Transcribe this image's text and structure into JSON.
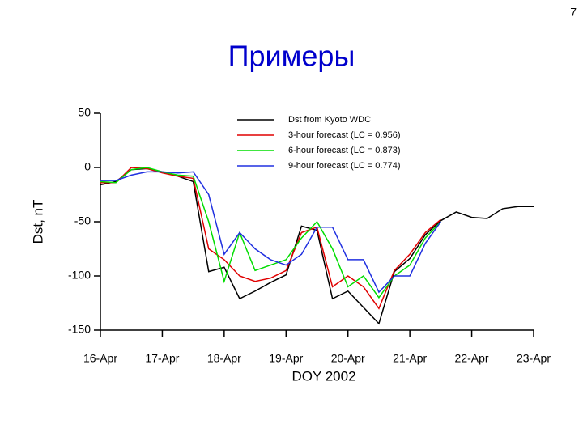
{
  "page_number": "7",
  "heading": "Примеры",
  "chart_data": {
    "type": "line",
    "x_label": "DOY 2002",
    "y_label": "Dst, nT",
    "x": [
      106,
      106.25,
      106.5,
      106.75,
      107,
      107.25,
      107.5,
      107.75,
      108,
      108.25,
      108.5,
      108.75,
      109,
      109.25,
      109.5,
      109.75,
      110,
      110.25,
      110.5,
      110.75,
      111,
      111.25,
      111.5,
      111.75,
      112,
      112.25,
      112.5,
      112.75,
      113
    ],
    "xlim": [
      106,
      113
    ],
    "xticks": [
      {
        "value": 106,
        "label": "16-Apr"
      },
      {
        "value": 107,
        "label": "17-Apr"
      },
      {
        "value": 108,
        "label": "18-Apr"
      },
      {
        "value": 109,
        "label": "19-Apr"
      },
      {
        "value": 110,
        "label": "20-Apr"
      },
      {
        "value": 111,
        "label": "21-Apr"
      },
      {
        "value": 112,
        "label": "22-Apr"
      },
      {
        "value": 113,
        "label": "23-Apr"
      }
    ],
    "ylim": [
      -150,
      50
    ],
    "yticks": [
      -150,
      -100,
      -50,
      0,
      50
    ],
    "legend": "top-center",
    "series": [
      {
        "name": "Dst from Kyoto WDC",
        "color": "#000000",
        "values": [
          -16,
          -13,
          -2,
          -1,
          -4,
          -8,
          -13,
          -96,
          -92,
          -121,
          -114,
          -106,
          -99,
          -54,
          -58,
          -121,
          -114,
          -129,
          -144,
          -96,
          -84,
          -62,
          -49,
          -41,
          -46,
          -47,
          -38,
          -36,
          -36
        ]
      },
      {
        "name": "3-hour forecast (LC = 0.956)",
        "color": "#e00000",
        "values": [
          -14,
          -14,
          0,
          -1,
          -5,
          -8,
          -10,
          -75,
          -85,
          -100,
          -105,
          -102,
          -95,
          -60,
          -55,
          -110,
          -100,
          -110,
          -130,
          -95,
          -80,
          -60,
          -48,
          null,
          null,
          null,
          null,
          null,
          null
        ]
      },
      {
        "name": "6-hour forecast (LC = 0.873)",
        "color": "#00dd00",
        "values": [
          -13,
          -14,
          -2,
          0,
          -4,
          -7,
          -8,
          -50,
          -105,
          -60,
          -95,
          -90,
          -85,
          -65,
          -50,
          -75,
          -110,
          -100,
          -120,
          -100,
          -90,
          -65,
          -50,
          null,
          null,
          null,
          null,
          null,
          null
        ]
      },
      {
        "name": "9-hour forecast (LC = 0.774)",
        "color": "#2030e0",
        "values": [
          -12,
          -12,
          -7,
          -4,
          -4,
          -5,
          -4,
          -25,
          -80,
          -60,
          -75,
          -85,
          -90,
          -80,
          -55,
          -55,
          -85,
          -85,
          -115,
          -100,
          -100,
          -70,
          -50,
          null,
          null,
          null,
          null,
          null,
          null
        ]
      }
    ]
  }
}
